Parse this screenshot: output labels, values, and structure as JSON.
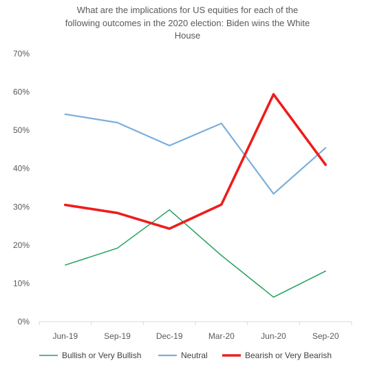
{
  "chart_data": {
    "type": "line",
    "title_lines": [
      "What are the implications for US equities for each of the",
      "following outcomes in the 2020 election: Biden wins the White",
      "House"
    ],
    "categories": [
      "Jun-19",
      "Sep-19",
      "Dec-19",
      "Mar-20",
      "Jun-20",
      "Sep-20"
    ],
    "y_ticks": [
      "0%",
      "10%",
      "20%",
      "30%",
      "40%",
      "50%",
      "60%",
      "70%"
    ],
    "ylim": [
      0,
      70
    ],
    "grid": false,
    "legend_position": "bottom",
    "series": [
      {
        "name": "Bullish or Very Bullish",
        "values": [
          14.8,
          19.2,
          29.2,
          17.3,
          6.4,
          13.2
        ],
        "color": "#21a05a"
      },
      {
        "name": "Neutral",
        "values": [
          54.2,
          52.0,
          46.0,
          51.8,
          33.4,
          45.4
        ],
        "color": "#7aaedc"
      },
      {
        "name": "Bearish or Very Bearish",
        "values": [
          30.5,
          28.4,
          24.3,
          30.6,
          59.4,
          41.0
        ],
        "color": "#ee1c1c"
      }
    ]
  }
}
